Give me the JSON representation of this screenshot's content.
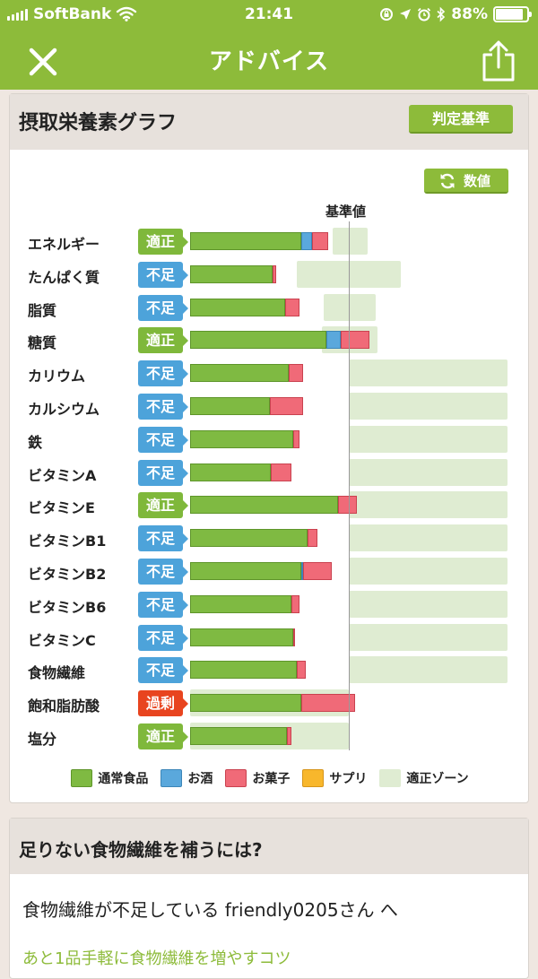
{
  "status_bar": {
    "carrier": "SoftBank",
    "time": "21:41",
    "battery_percent": "88%",
    "battery_level": 0.88,
    "icons": [
      "signal-icon",
      "wifi-icon",
      "screen-lock-icon",
      "location-icon",
      "alarm-icon",
      "bluetooth-icon",
      "battery-icon"
    ]
  },
  "nav": {
    "title": "アドバイス",
    "close_icon": "close-icon",
    "share_icon": "share-icon"
  },
  "graph_panel": {
    "title": "摂取栄養素グラフ",
    "judge_button": "判定基準",
    "value_button": "数値",
    "standard_label": "基準値"
  },
  "colors": {
    "food": "#7fba42",
    "alcohol": "#5aa8dc",
    "snack": "#f06a78",
    "supplement": "#f8b72c",
    "zone": "#dfecd2",
    "status_ok": "#7fb83b",
    "status_low": "#4da3da",
    "status_over": "#e8441f"
  },
  "chart_data": {
    "type": "bar",
    "orientation": "horizontal",
    "stacked": true,
    "reference": 100,
    "reference_label": "基準値",
    "unit_note": "values in percent of standard value (estimated)",
    "xlim": [
      0,
      200
    ],
    "series_names": [
      "通常食品",
      "お酒",
      "お菓子",
      "サプリ",
      "適正ゾーン"
    ],
    "rows": [
      {
        "name": "エネルギー",
        "status": "適正",
        "status_key": "ok",
        "food": 70,
        "alcohol": 7,
        "snack": 10,
        "supplement": 0,
        "zone": [
          90,
          112
        ]
      },
      {
        "name": "たんぱく質",
        "status": "不足",
        "status_key": "low",
        "food": 52,
        "alcohol": 0,
        "snack": 2,
        "supplement": 0,
        "zone": [
          67,
          133
        ]
      },
      {
        "name": "脂質",
        "status": "不足",
        "status_key": "low",
        "food": 60,
        "alcohol": 0,
        "snack": 9,
        "supplement": 0,
        "zone": [
          84,
          117
        ]
      },
      {
        "name": "糖質",
        "status": "適正",
        "status_key": "ok",
        "food": 86,
        "alcohol": 9,
        "snack": 18,
        "supplement": 0,
        "zone": [
          83,
          118
        ]
      },
      {
        "name": "カリウム",
        "status": "不足",
        "status_key": "low",
        "food": 62,
        "alcohol": 0,
        "snack": 9,
        "supplement": 0,
        "zone": [
          100,
          200
        ]
      },
      {
        "name": "カルシウム",
        "status": "不足",
        "status_key": "low",
        "food": 50,
        "alcohol": 0,
        "snack": 21,
        "supplement": 0,
        "zone": [
          100,
          200
        ]
      },
      {
        "name": "鉄",
        "status": "不足",
        "status_key": "low",
        "food": 65,
        "alcohol": 0,
        "snack": 4,
        "supplement": 0,
        "zone": [
          100,
          200
        ]
      },
      {
        "name": "ビタミンA",
        "status": "不足",
        "status_key": "low",
        "food": 51,
        "alcohol": 0,
        "snack": 13,
        "supplement": 0,
        "zone": [
          100,
          200
        ]
      },
      {
        "name": "ビタミンE",
        "status": "適正",
        "status_key": "ok",
        "food": 93,
        "alcohol": 0,
        "snack": 12,
        "supplement": 0,
        "zone": [
          100,
          200
        ]
      },
      {
        "name": "ビタミンB1",
        "status": "不足",
        "status_key": "low",
        "food": 74,
        "alcohol": 0,
        "snack": 6,
        "supplement": 0,
        "zone": [
          100,
          200
        ]
      },
      {
        "name": "ビタミンB2",
        "status": "不足",
        "status_key": "low",
        "food": 70,
        "alcohol": 1,
        "snack": 18,
        "supplement": 0,
        "zone": [
          100,
          200
        ]
      },
      {
        "name": "ビタミンB6",
        "status": "不足",
        "status_key": "low",
        "food": 64,
        "alcohol": 0,
        "snack": 5,
        "supplement": 0,
        "zone": [
          100,
          200
        ]
      },
      {
        "name": "ビタミンC",
        "status": "不足",
        "status_key": "low",
        "food": 65,
        "alcohol": 0,
        "snack": 1,
        "supplement": 0,
        "zone": [
          100,
          200
        ]
      },
      {
        "name": "食物繊維",
        "status": "不足",
        "status_key": "low",
        "food": 67,
        "alcohol": 0,
        "snack": 6,
        "supplement": 0,
        "zone": [
          100,
          200
        ]
      },
      {
        "name": "飽和脂肪酸",
        "status": "過剰",
        "status_key": "over",
        "food": 70,
        "alcohol": 0,
        "snack": 34,
        "supplement": 0,
        "zone": [
          0,
          100
        ]
      },
      {
        "name": "塩分",
        "status": "適正",
        "status_key": "ok",
        "food": 61,
        "alcohol": 0,
        "snack": 3,
        "supplement": 0,
        "zone": [
          0,
          100
        ]
      }
    ]
  },
  "legend": [
    {
      "label": "通常食品",
      "color": "#7fba42",
      "border": "#5e952a"
    },
    {
      "label": "お酒",
      "color": "#5aa8dc",
      "border": "#3c86b8"
    },
    {
      "label": "お菓子",
      "color": "#f06a78",
      "border": "#c9424f"
    },
    {
      "label": "サプリ",
      "color": "#f8b72c",
      "border": "#d6951a"
    },
    {
      "label": "適正ゾーン",
      "color": "#dfecd2",
      "border": "#dfecd2"
    }
  ],
  "advice_panel": {
    "title": "足りない食物繊維を補うには?",
    "message": "食物繊維が不足している friendly0205さん へ",
    "link_text": "あと1品手軽に食物繊維を増やすコツ"
  }
}
